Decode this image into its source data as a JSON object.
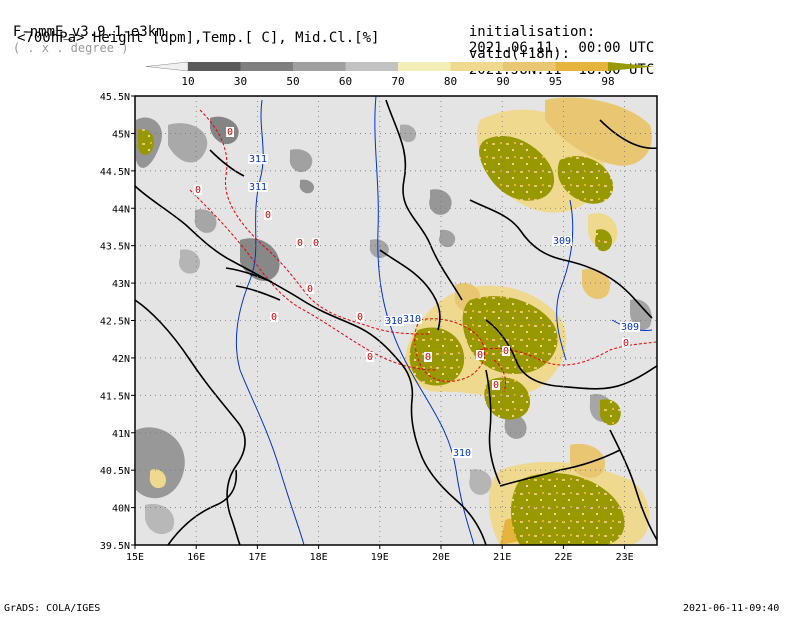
{
  "header": {
    "model": "F-nmmE_v3.9.1-e3km",
    "units": "( . x . degree )",
    "fields": "<700hPa> Height [dpm],Temp.[ C], Mid.Cl.[%]",
    "init_label": "initialisation:",
    "init_value": "2021.06.11.  00:00 UTC",
    "valid_label": "valid(+18h):",
    "valid_value": "2021.JUN.11  18:00 UTC"
  },
  "colorbar": {
    "labels": [
      "10",
      "30",
      "50",
      "60",
      "70",
      "80",
      "90",
      "95",
      "98"
    ],
    "colors": [
      "#5a5a5a",
      "#7f7f7f",
      "#a0a0a0",
      "#c2c2c2",
      "#f2eeb5",
      "#efd98f",
      "#e9c772",
      "#e6b43c",
      "#989800"
    ],
    "end_low_color": "#f0f0f0",
    "end_high_color": "#989800"
  },
  "map": {
    "lat_ticks": [
      "45.5N",
      "45N",
      "44.5N",
      "44N",
      "43.5N",
      "43N",
      "42.5N",
      "42N",
      "41.5N",
      "41N",
      "40.5N",
      "40N",
      "39.5N"
    ],
    "lon_ticks": [
      "15E",
      "16E",
      "17E",
      "18E",
      "19E",
      "20E",
      "21E",
      "22E",
      "23E"
    ],
    "height_labels": [
      "311",
      "311",
      "309",
      "310",
      "310",
      "309",
      "310"
    ],
    "temp_labels": [
      "0",
      "0",
      "0",
      "0",
      "0",
      "0",
      "0",
      "0",
      "0",
      "0",
      "0",
      "0",
      "0",
      "0"
    ],
    "colors": {
      "sea": "#e4e4e4",
      "temp_contour": "#e60000",
      "height_contour": "#0033cc",
      "border": "#000000"
    }
  },
  "footer": {
    "left": "GrADS: COLA/IGES",
    "right": "2021-06-11-09:40"
  }
}
